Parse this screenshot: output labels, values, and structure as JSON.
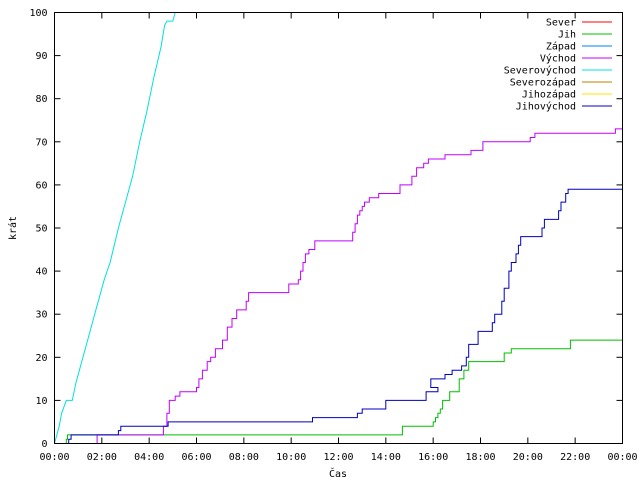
{
  "chart_data": {
    "type": "line",
    "xlabel": "Čas",
    "ylabel": "krát",
    "xlim": [
      0,
      24
    ],
    "ylim": [
      0,
      100
    ],
    "grid": false,
    "legend_position": "top-right",
    "x_ticks": [
      {
        "value": 0,
        "label": "00:00"
      },
      {
        "value": 2,
        "label": "02:00"
      },
      {
        "value": 4,
        "label": "04:00"
      },
      {
        "value": 6,
        "label": "06:00"
      },
      {
        "value": 8,
        "label": "08:00"
      },
      {
        "value": 10,
        "label": "10:00"
      },
      {
        "value": 12,
        "label": "12:00"
      },
      {
        "value": 14,
        "label": "14:00"
      },
      {
        "value": 16,
        "label": "16:00"
      },
      {
        "value": 18,
        "label": "18:00"
      },
      {
        "value": 20,
        "label": "20:00"
      },
      {
        "value": 22,
        "label": "22:00"
      },
      {
        "value": 24,
        "label": "00:00"
      }
    ],
    "y_ticks": [
      0,
      10,
      20,
      30,
      40,
      50,
      60,
      70,
      80,
      90,
      100
    ],
    "series": [
      {
        "name": "Sever",
        "color": "#ff0000",
        "step": true,
        "points": []
      },
      {
        "name": "Jih",
        "color": "#00c000",
        "step": true,
        "points": [
          [
            0.45,
            0
          ],
          [
            0.5,
            1
          ],
          [
            0.55,
            2
          ],
          [
            14.7,
            4
          ],
          [
            16.0,
            5
          ],
          [
            16.1,
            6
          ],
          [
            16.2,
            7
          ],
          [
            16.3,
            8
          ],
          [
            16.4,
            10
          ],
          [
            16.7,
            12
          ],
          [
            17.1,
            15
          ],
          [
            17.3,
            17
          ],
          [
            17.5,
            19
          ],
          [
            19.0,
            21
          ],
          [
            19.3,
            22
          ],
          [
            21.8,
            24
          ],
          [
            24,
            24
          ]
        ]
      },
      {
        "name": "Západ",
        "color": "#0080ff",
        "step": true,
        "points": []
      },
      {
        "name": "Východ",
        "color": "#c000ff",
        "step": true,
        "points": [
          [
            1.7,
            0
          ],
          [
            1.8,
            2
          ],
          [
            3.8,
            2
          ],
          [
            4.6,
            4
          ],
          [
            4.75,
            7
          ],
          [
            4.85,
            10
          ],
          [
            5.1,
            11
          ],
          [
            5.3,
            12
          ],
          [
            6.0,
            13
          ],
          [
            6.1,
            15
          ],
          [
            6.25,
            17
          ],
          [
            6.45,
            19
          ],
          [
            6.6,
            20
          ],
          [
            6.8,
            22
          ],
          [
            7.1,
            24
          ],
          [
            7.3,
            27
          ],
          [
            7.5,
            29
          ],
          [
            7.7,
            31
          ],
          [
            8.1,
            33
          ],
          [
            8.2,
            35
          ],
          [
            9.9,
            37
          ],
          [
            10.3,
            38
          ],
          [
            10.4,
            40
          ],
          [
            10.5,
            42
          ],
          [
            10.6,
            44
          ],
          [
            10.75,
            45
          ],
          [
            11.0,
            47
          ],
          [
            12.6,
            49
          ],
          [
            12.7,
            51
          ],
          [
            12.8,
            53
          ],
          [
            12.9,
            54
          ],
          [
            13.0,
            55
          ],
          [
            13.1,
            56
          ],
          [
            13.3,
            57
          ],
          [
            13.7,
            58
          ],
          [
            14.6,
            60
          ],
          [
            15.1,
            62
          ],
          [
            15.3,
            64
          ],
          [
            15.6,
            65
          ],
          [
            15.8,
            66
          ],
          [
            16.5,
            67
          ],
          [
            17.6,
            68
          ],
          [
            18.1,
            70
          ],
          [
            20.1,
            71
          ],
          [
            20.3,
            72
          ],
          [
            23.7,
            73
          ],
          [
            24,
            73
          ]
        ]
      },
      {
        "name": "Severovýchod",
        "color": "#00e0e0",
        "step": false,
        "points": [
          [
            0.0,
            0
          ],
          [
            0.2,
            4
          ],
          [
            0.3,
            7
          ],
          [
            0.5,
            10
          ],
          [
            0.75,
            10
          ],
          [
            0.9,
            14
          ],
          [
            1.3,
            22
          ],
          [
            1.7,
            30
          ],
          [
            2.1,
            38
          ],
          [
            2.35,
            42
          ],
          [
            2.7,
            50
          ],
          [
            3.0,
            56
          ],
          [
            3.3,
            62
          ],
          [
            3.6,
            70
          ],
          [
            3.9,
            77
          ],
          [
            4.2,
            85
          ],
          [
            4.5,
            92
          ],
          [
            4.65,
            97
          ],
          [
            4.75,
            98
          ],
          [
            5.0,
            98
          ],
          [
            5.1,
            100
          ]
        ]
      },
      {
        "name": "Severozápad",
        "color": "#c08000",
        "step": true,
        "points": []
      },
      {
        "name": "Jihozápad",
        "color": "#ffe000",
        "step": true,
        "points": []
      },
      {
        "name": "Jihovýchod",
        "color": "#0000c0",
        "step": true,
        "points": [
          [
            0.5,
            0
          ],
          [
            0.6,
            1
          ],
          [
            0.7,
            2
          ],
          [
            2.7,
            3
          ],
          [
            2.8,
            4
          ],
          [
            4.8,
            5
          ],
          [
            10.9,
            6
          ],
          [
            12.8,
            7
          ],
          [
            13.0,
            8
          ],
          [
            14.0,
            10
          ],
          [
            15.7,
            12
          ],
          [
            16.2,
            13
          ],
          [
            15.9,
            15
          ],
          [
            16.5,
            16
          ],
          [
            16.8,
            17
          ],
          [
            17.2,
            18
          ],
          [
            17.4,
            20
          ],
          [
            17.5,
            23
          ],
          [
            17.9,
            26
          ],
          [
            18.5,
            28
          ],
          [
            18.6,
            30
          ],
          [
            18.9,
            33
          ],
          [
            19.0,
            36
          ],
          [
            19.2,
            40
          ],
          [
            19.3,
            42
          ],
          [
            19.5,
            44
          ],
          [
            19.6,
            46
          ],
          [
            19.7,
            48
          ],
          [
            20.6,
            50
          ],
          [
            20.7,
            52
          ],
          [
            21.3,
            54
          ],
          [
            21.4,
            56
          ],
          [
            21.6,
            58
          ],
          [
            21.7,
            59
          ],
          [
            24,
            59
          ]
        ]
      }
    ]
  }
}
